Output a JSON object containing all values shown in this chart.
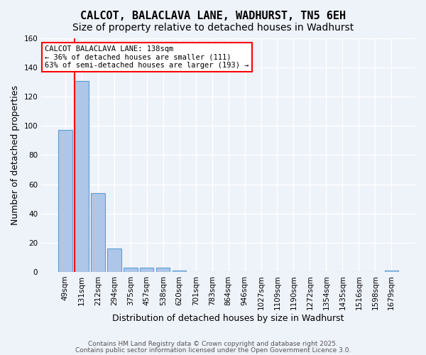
{
  "title": "CALCOT, BALACLAVA LANE, WADHURST, TN5 6EH",
  "subtitle": "Size of property relative to detached houses in Wadhurst",
  "xlabel": "Distribution of detached houses by size in Wadhurst",
  "ylabel": "Number of detached properties",
  "bar_values": [
    97,
    131,
    54,
    16,
    3,
    3,
    3,
    1,
    0,
    0,
    0,
    0,
    0,
    0,
    0,
    0,
    0,
    0,
    0,
    0,
    1
  ],
  "categories": [
    "49sqm",
    "131sqm",
    "212sqm",
    "294sqm",
    "375sqm",
    "457sqm",
    "538sqm",
    "620sqm",
    "701sqm",
    "783sqm",
    "864sqm",
    "946sqm",
    "1027sqm",
    "1109sqm",
    "1190sqm",
    "1272sqm",
    "1354sqm",
    "1435sqm",
    "1516sqm",
    "1598sqm",
    "1679sqm"
  ],
  "bar_color": "#aec6e8",
  "bar_edge_color": "#5a9fd4",
  "vline_x": 0.575,
  "vline_color": "red",
  "annotation_box_text": "CALCOT BALACLAVA LANE: 138sqm\n← 36% of detached houses are smaller (111)\n63% of semi-detached houses are larger (193) →",
  "annotation_box_color": "red",
  "annotation_box_facecolor": "white",
  "ylim": [
    0,
    160
  ],
  "yticks": [
    0,
    20,
    40,
    60,
    80,
    100,
    120,
    140,
    160
  ],
  "footer_line1": "Contains HM Land Registry data © Crown copyright and database right 2025.",
  "footer_line2": "Contains public sector information licensed under the Open Government Licence 3.0.",
  "background_color": "#eef2f9",
  "grid_color": "white",
  "title_fontsize": 11,
  "subtitle_fontsize": 10,
  "axis_label_fontsize": 9,
  "tick_fontsize": 7.5
}
